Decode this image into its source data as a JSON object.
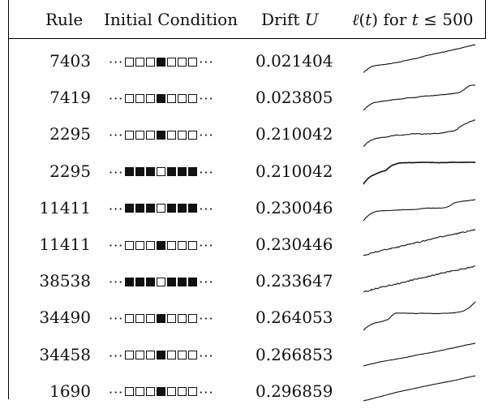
{
  "header": {
    "rule": "Rule",
    "initial_condition": "Initial Condition",
    "drift_prefix": "Drift ",
    "drift_symbol": "U",
    "ell_symbol": "ℓ",
    "ell_arg": "(t)",
    "ell_for": " for ",
    "ell_t": "t",
    "ell_rest": " ≤ 500"
  },
  "rows": [
    {
      "rule": "7403",
      "cells": [
        0,
        0,
        0,
        1,
        0,
        0,
        0
      ],
      "drift": "0.021404",
      "trace": "A"
    },
    {
      "rule": "7419",
      "cells": [
        0,
        0,
        0,
        1,
        0,
        0,
        0
      ],
      "drift": "0.023805",
      "trace": "B"
    },
    {
      "rule": "2295",
      "cells": [
        0,
        0,
        0,
        1,
        0,
        0,
        0
      ],
      "drift": "0.210042",
      "trace": "C"
    },
    {
      "rule": "2295",
      "cells": [
        1,
        1,
        1,
        0,
        1,
        1,
        1
      ],
      "drift": "0.210042",
      "trace": "D"
    },
    {
      "rule": "11411",
      "cells": [
        1,
        1,
        1,
        0,
        1,
        1,
        1
      ],
      "drift": "0.230046",
      "trace": "E"
    },
    {
      "rule": "11411",
      "cells": [
        0,
        0,
        0,
        1,
        0,
        0,
        0
      ],
      "drift": "0.230446",
      "trace": "F"
    },
    {
      "rule": "38538",
      "cells": [
        1,
        1,
        1,
        0,
        1,
        1,
        1
      ],
      "drift": "0.233647",
      "trace": "G"
    },
    {
      "rule": "34490",
      "cells": [
        0,
        0,
        0,
        1,
        0,
        0,
        0
      ],
      "drift": "0.264053",
      "trace": "H"
    },
    {
      "rule": "34458",
      "cells": [
        0,
        0,
        0,
        1,
        0,
        0,
        0
      ],
      "drift": "0.266853",
      "trace": "I"
    },
    {
      "rule": "1690",
      "cells": [
        0,
        0,
        0,
        1,
        0,
        0,
        0
      ],
      "drift": "0.296859",
      "trace": "J"
    }
  ],
  "ellipsis": "···",
  "colors": {
    "ink": "#111111",
    "background": "#ffffff"
  }
}
